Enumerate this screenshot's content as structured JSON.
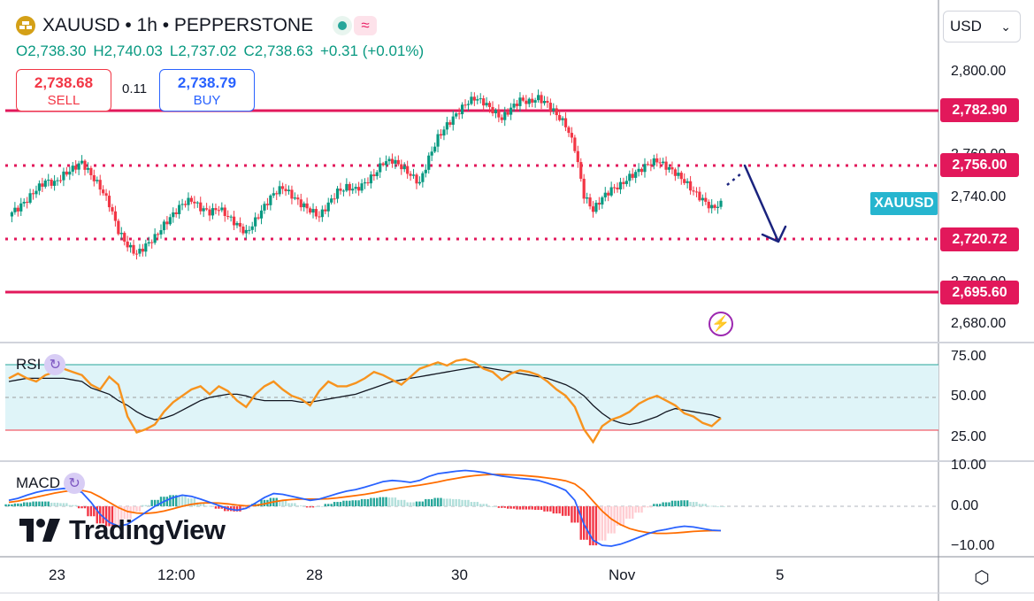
{
  "header": {
    "title": "XAUUSD • 1h • PEPPERSTONE",
    "wave_icon": "≈",
    "ohlc": {
      "open": "O2,738.30",
      "high": "H2,740.03",
      "low": "L2,737.02",
      "close": "C2,738.63",
      "change": "+0.31 (+0.01%)"
    }
  },
  "trade": {
    "sell_price": "2,738.68",
    "sell_label": "SELL",
    "spread": "0.11",
    "buy_price": "2,738.79",
    "buy_label": "BUY"
  },
  "currency_select": {
    "value": "USD",
    "chevron": "⌄"
  },
  "price_axis": {
    "ticks": [
      "2,800.00",
      "2,760.00",
      "2,740.00",
      "2,700.00",
      "2,680.00"
    ],
    "levels": [
      "2,782.90",
      "2,756.00",
      "2,720.72",
      "2,695.60"
    ],
    "symbol_tag": "XAUUSD"
  },
  "rsi": {
    "label": "RSI",
    "ticks": [
      "75.00",
      "50.00",
      "25.00"
    ]
  },
  "macd": {
    "label": "MACD",
    "ticks": [
      "10.00",
      "0.00",
      "−10.00"
    ]
  },
  "time_axis": {
    "labels": [
      "23",
      "12:00",
      "28",
      "30",
      "Nov",
      "5"
    ]
  },
  "logo_text": "TradingView",
  "icons": {
    "bolt": "⚡",
    "settings": "⬡",
    "refresh": "↻"
  },
  "colors": {
    "up": "#089981",
    "down": "#f23645",
    "level": "#e2185b",
    "rsi": "#f7931e",
    "macd": "#2962ff",
    "signal": "#ff6d00",
    "arrow": "#1a237e"
  },
  "chart_data": {
    "type": "candlestick",
    "price_range": [
      2670,
      2815
    ],
    "x_labels": [
      "23",
      "12:00",
      "28",
      "30",
      "Nov",
      "5"
    ],
    "close_path": [
      2733,
      2736,
      2740,
      2745,
      2749,
      2748,
      2752,
      2755,
      2758,
      2752,
      2746,
      2738,
      2725,
      2718,
      2714,
      2718,
      2722,
      2728,
      2733,
      2738,
      2740,
      2736,
      2734,
      2736,
      2732,
      2728,
      2724,
      2730,
      2737,
      2743,
      2746,
      2742,
      2738,
      2735,
      2732,
      2738,
      2744,
      2746,
      2745,
      2748,
      2752,
      2758,
      2759,
      2756,
      2752,
      2748,
      2760,
      2770,
      2776,
      2781,
      2786,
      2789,
      2787,
      2783,
      2779,
      2784,
      2788,
      2787,
      2789,
      2786,
      2781,
      2776,
      2765,
      2742,
      2735,
      2741,
      2745,
      2747,
      2751,
      2754,
      2757,
      2759,
      2756,
      2753,
      2749,
      2744,
      2740,
      2736,
      2738
    ],
    "levels": [
      {
        "value": 2782.9,
        "style": "solid"
      },
      {
        "value": 2756.0,
        "style": "dotted"
      },
      {
        "value": 2720.72,
        "style": "dotted"
      },
      {
        "value": 2695.6,
        "style": "solid"
      }
    ],
    "rsi_range": [
      18,
      82
    ],
    "rsi_band": [
      30,
      70
    ],
    "rsi_values": [
      62,
      65,
      62,
      60,
      64,
      66,
      68,
      66,
      64,
      58,
      55,
      63,
      58,
      38,
      28,
      30,
      33,
      41,
      47,
      51,
      55,
      57,
      52,
      57,
      54,
      48,
      44,
      52,
      57,
      60,
      55,
      51,
      49,
      45,
      54,
      60,
      57,
      57,
      59,
      62,
      66,
      64,
      61,
      58,
      63,
      68,
      70,
      72,
      70,
      73,
      74,
      72,
      68,
      66,
      61,
      65,
      67,
      66,
      64,
      60,
      55,
      51,
      44,
      30,
      22,
      32,
      36,
      38,
      41,
      46,
      49,
      51,
      48,
      45,
      40,
      38,
      34,
      32,
      37
    ],
    "rsi_ma": [
      60,
      61,
      62,
      62,
      62,
      62,
      62,
      61,
      60,
      56,
      54,
      52,
      48,
      45,
      41,
      38,
      36,
      37,
      39,
      42,
      45,
      48,
      50,
      51,
      52,
      52,
      51,
      49,
      48,
      48,
      48,
      48,
      47,
      47,
      48,
      49,
      50,
      51,
      52,
      54,
      56,
      58,
      60,
      61,
      62,
      63,
      64,
      65,
      66,
      67,
      68,
      69,
      69,
      68,
      67,
      66,
      65,
      64,
      63,
      62,
      60,
      58,
      55,
      51,
      45,
      40,
      36,
      34,
      33,
      34,
      36,
      38,
      41,
      43,
      42,
      41,
      40,
      39,
      37
    ],
    "macd_range": [
      -12,
      12
    ],
    "macd_values": [
      1.5,
      2,
      2.8,
      3.5,
      4,
      4.2,
      4.5,
      4.3,
      3.5,
      1,
      -2,
      -4,
      -5,
      -4.5,
      -3,
      -1.5,
      0,
      1.2,
      2.2,
      2.8,
      2.5,
      1.8,
      1,
      0.2,
      -0.6,
      -1,
      -0.5,
      0.8,
      2.2,
      3.2,
      3,
      2.5,
      2,
      1.5,
      1.8,
      2.5,
      3.2,
      3.8,
      4.2,
      4.8,
      5.5,
      6.2,
      6.5,
      6.3,
      6,
      6.5,
      7.5,
      8.2,
      8.5,
      8.8,
      9,
      8.8,
      8.5,
      8,
      7.6,
      7.3,
      7,
      6.8,
      6.5,
      5.8,
      5,
      4,
      1.5,
      -4.5,
      -8.5,
      -9.8,
      -10,
      -9.5,
      -8.7,
      -7.8,
      -6.9,
      -6.2,
      -5.8,
      -5.3,
      -5,
      -5.2,
      -5.6,
      -6,
      -6.1
    ],
    "signal_values": [
      1,
      1.3,
      1.8,
      2.3,
      2.8,
      3.3,
      3.7,
      4,
      4,
      3.5,
      2.3,
      1,
      -0.3,
      -1.3,
      -1.7,
      -1.8,
      -1.6,
      -1.2,
      -0.6,
      0,
      0.5,
      0.8,
      0.9,
      0.8,
      0.6,
      0.3,
      0.1,
      0.2,
      0.6,
      1.1,
      1.5,
      1.7,
      1.8,
      1.8,
      1.8,
      1.9,
      2.1,
      2.4,
      2.7,
      3,
      3.4,
      3.9,
      4.3,
      4.7,
      5,
      5.3,
      5.7,
      6.1,
      6.6,
      7,
      7.4,
      7.7,
      7.9,
      8,
      8,
      7.9,
      7.8,
      7.6,
      7.4,
      7.1,
      6.8,
      6.4,
      5.6,
      3.9,
      1.3,
      -1.2,
      -3.2,
      -4.6,
      -5.6,
      -6.2,
      -6.6,
      -6.8,
      -6.8,
      -6.7,
      -6.5,
      -6.3,
      -6.2,
      -6.1,
      -6.1
    ],
    "projection": {
      "from_value": 2749,
      "to_value": 2721
    }
  }
}
